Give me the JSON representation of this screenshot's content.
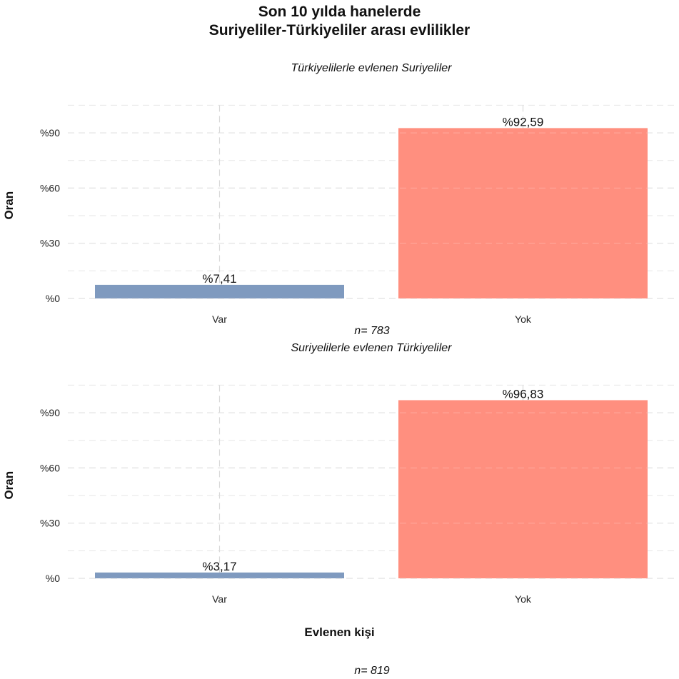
{
  "title_line1": "Son 10 yılda hanelerde",
  "title_line2": "Suriyeliler-Türkiyeliler arası evlilikler",
  "x_axis_title": "Evlenen kişi",
  "colors": {
    "var": "#7f9aBF",
    "yok": "#ff8f7f",
    "grid": "#d9d9d9"
  },
  "panels": [
    {
      "subtitle": "Türkiyelilerle evlenen Suriyeliler",
      "n_label": "n=  783"
    },
    {
      "subtitle": "Suriyelilerle evlenen Türkiyeliler",
      "n_label": "n=  819"
    }
  ],
  "chart_data": [
    {
      "type": "bar",
      "subtitle": "Türkiyelilerle evlenen Suriyeliler",
      "categories": [
        "Var",
        "Yok"
      ],
      "values": [
        7.41,
        92.59
      ],
      "data_labels": [
        "%7,41",
        "%92,59"
      ],
      "ylabel": "Oran",
      "ytick_values": [
        0,
        30,
        60,
        90
      ],
      "ytick_labels": [
        "%0",
        "%30",
        "%60",
        "%90"
      ],
      "ylim": [
        0,
        105
      ],
      "grid": true
    },
    {
      "type": "bar",
      "subtitle": "Suriyelilerle evlenen Türkiyeliler",
      "categories": [
        "Var",
        "Yok"
      ],
      "values": [
        3.17,
        96.83
      ],
      "data_labels": [
        "%3,17",
        "%96,83"
      ],
      "ylabel": "Oran",
      "ytick_values": [
        0,
        30,
        60,
        90
      ],
      "ytick_labels": [
        "%0",
        "%30",
        "%60",
        "%90"
      ],
      "ylim": [
        0,
        105
      ],
      "grid": true
    }
  ]
}
